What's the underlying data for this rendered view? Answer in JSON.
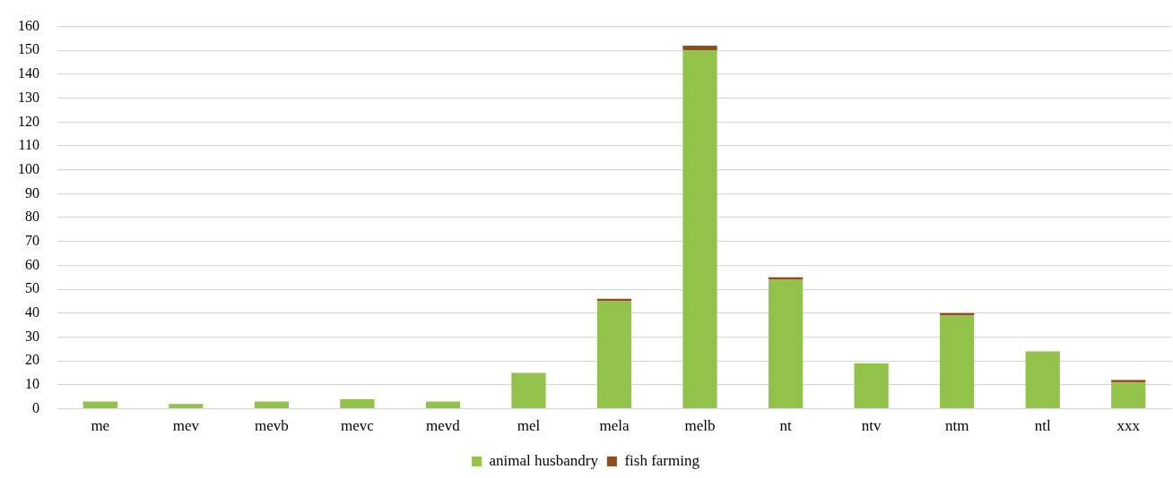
{
  "chart_data": {
    "type": "bar",
    "stacked": true,
    "categories": [
      "me",
      "mev",
      "mevb",
      "mevc",
      "mevd",
      "mel",
      "mela",
      "melb",
      "nt",
      "ntv",
      "ntm",
      "ntl",
      "xxx"
    ],
    "series": [
      {
        "name": "animal husbandry",
        "color": "#92c24a",
        "values": [
          3,
          2,
          3,
          4,
          3,
          15,
          45,
          150,
          54,
          19,
          39,
          24,
          11
        ]
      },
      {
        "name": "fish farming",
        "color": "#8e4e16",
        "values": [
          0,
          0,
          0,
          0,
          0,
          0,
          1,
          2,
          1,
          0,
          1,
          0,
          1
        ]
      }
    ],
    "ylim": [
      0,
      160
    ],
    "yticks": [
      0,
      10,
      20,
      30,
      40,
      50,
      60,
      70,
      80,
      90,
      100,
      110,
      120,
      130,
      140,
      150,
      160
    ],
    "grid": "y",
    "legend": "bottom"
  }
}
